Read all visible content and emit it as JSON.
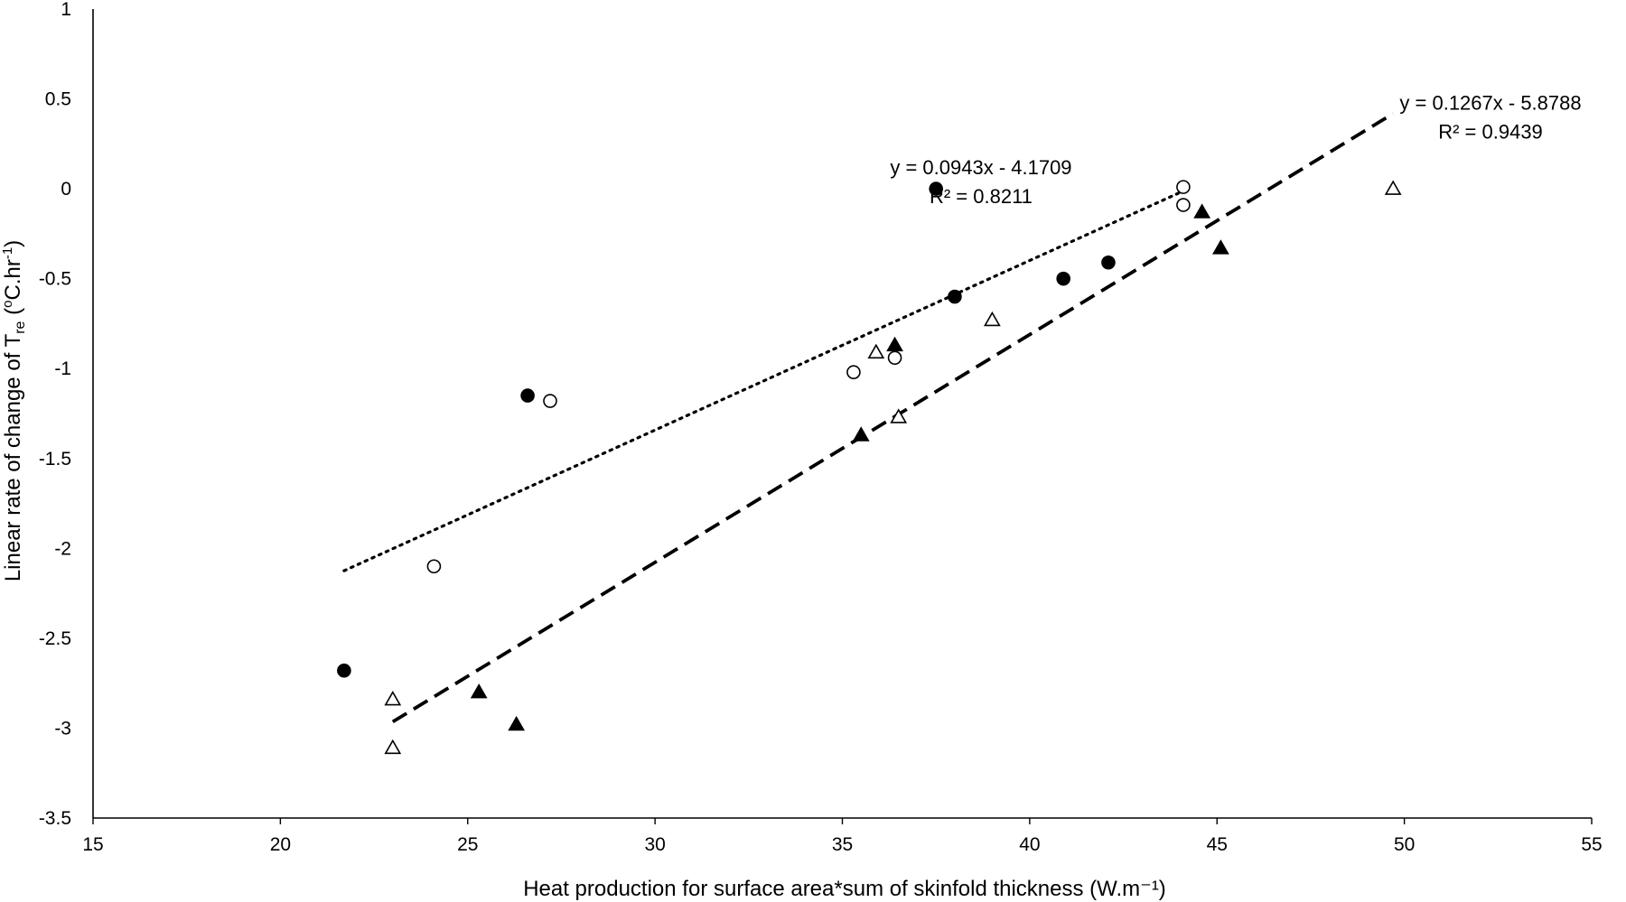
{
  "chart_data": {
    "type": "scatter",
    "title": "",
    "xlabel": "Heat production for surface area*sum of skinfold thickness (W.m⁻¹)",
    "ylabel_parts": {
      "prefix": "Linear rate of change of T",
      "subscript": "re",
      "open": " (",
      "sup_o": "o",
      "unit": "C.hr",
      "sup_unit": "-1",
      "close": ")"
    },
    "xlim": [
      15,
      55
    ],
    "ylim": [
      -3.5,
      1
    ],
    "xticks": [
      15,
      20,
      25,
      30,
      35,
      40,
      45,
      50,
      55
    ],
    "yticks": [
      -3.5,
      -3,
      -2.5,
      -2,
      -1.5,
      -1,
      -0.5,
      0,
      0.5,
      1
    ],
    "grid": false,
    "series": [
      {
        "marker": "filled-circle",
        "points": [
          [
            21.7,
            -2.68
          ],
          [
            26.6,
            -1.15
          ],
          [
            37.5,
            0.0
          ],
          [
            38.0,
            -0.6
          ],
          [
            40.9,
            -0.5
          ],
          [
            42.1,
            -0.41
          ]
        ]
      },
      {
        "marker": "open-circle",
        "points": [
          [
            24.1,
            -2.1
          ],
          [
            27.2,
            -1.18
          ],
          [
            35.3,
            -1.02
          ],
          [
            36.4,
            -0.94
          ],
          [
            44.1,
            0.01
          ],
          [
            44.1,
            -0.09
          ]
        ]
      },
      {
        "marker": "filled-triangle",
        "points": [
          [
            25.3,
            -2.8
          ],
          [
            26.3,
            -2.98
          ],
          [
            35.5,
            -1.37
          ],
          [
            36.4,
            -0.87
          ],
          [
            44.6,
            -0.13
          ],
          [
            45.1,
            -0.33
          ]
        ]
      },
      {
        "marker": "open-triangle",
        "points": [
          [
            23.0,
            -2.84
          ],
          [
            23.0,
            -3.11
          ],
          [
            35.9,
            -0.91
          ],
          [
            36.5,
            -1.27
          ],
          [
            39.0,
            -0.73
          ],
          [
            49.7,
            0.0
          ]
        ]
      }
    ],
    "trendlines": [
      {
        "style": "dotted",
        "slope": 0.0943,
        "intercept": -4.1709,
        "x_range": [
          21.7,
          44.1
        ],
        "equation": "y = 0.0943x - 4.1709",
        "r2": "R² = 0.8211",
        "label_at": [
          38.7,
          0.08
        ]
      },
      {
        "style": "dashed",
        "slope": 0.1267,
        "intercept": -5.8788,
        "x_range": [
          23.0,
          49.7
        ],
        "equation": "y = 0.1267x - 5.8788",
        "r2": "R² = 0.9439",
        "label_at": [
          52.3,
          0.44
        ]
      }
    ]
  }
}
